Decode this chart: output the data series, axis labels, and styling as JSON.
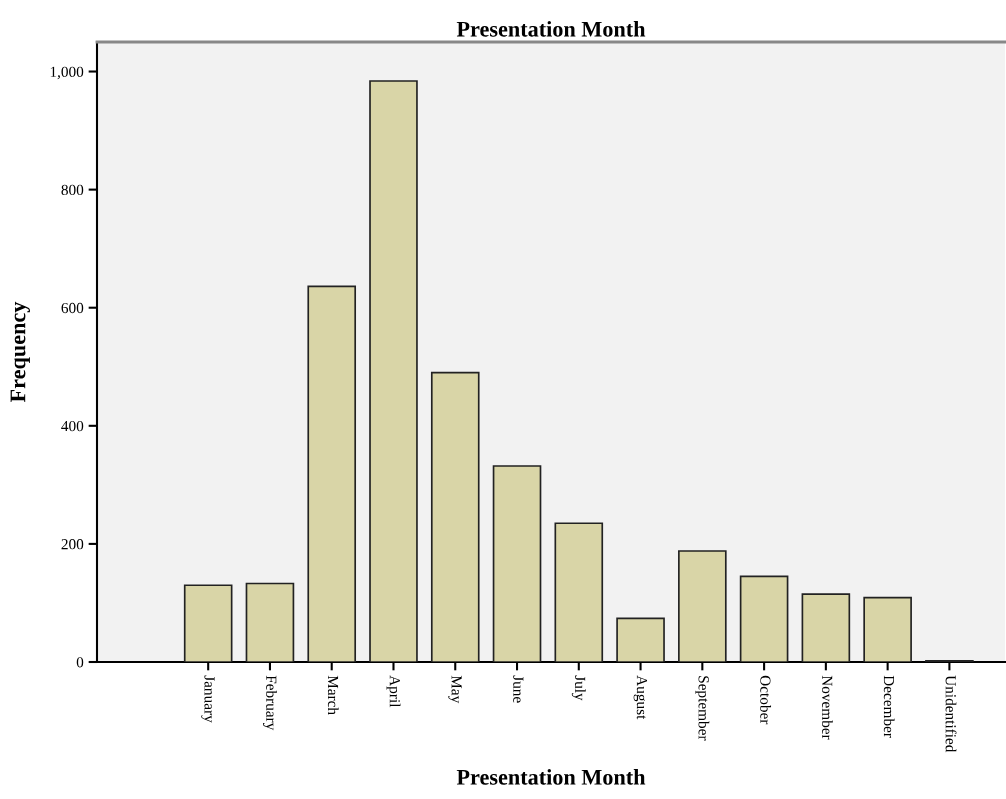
{
  "chart_data": {
    "type": "bar",
    "title": "Presentation Month",
    "xlabel": "Presentation Month",
    "ylabel": "Frequency",
    "categories": [
      "January",
      "February",
      "March",
      "April",
      "May",
      "June",
      "July",
      "August",
      "September",
      "October",
      "November",
      "December",
      "Unidentified"
    ],
    "values": [
      130,
      133,
      636,
      984,
      490,
      332,
      235,
      74,
      188,
      145,
      115,
      109,
      2
    ],
    "color": "#d9d5a7",
    "ylim": [
      0,
      1050
    ],
    "yticks": [
      0,
      200,
      400,
      600,
      800,
      {
        "value": 1000,
        "label": "1,000"
      }
    ],
    "grid": false
  }
}
